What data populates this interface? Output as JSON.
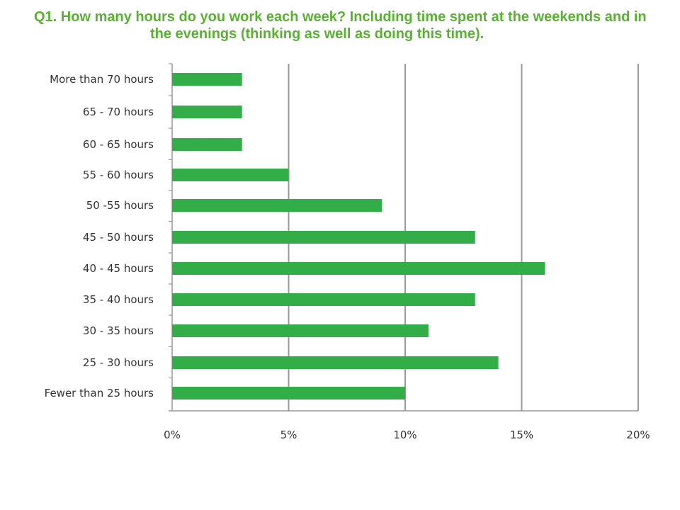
{
  "title": {
    "part1": "Q1.  How many hours do you work each week?  Including time spent at the weekends and in",
    "part2": "the evenings (thinking as well as doing this time)."
  },
  "colors": {
    "bar": "#33ad47",
    "grid": "#999999",
    "text": "#333333",
    "title": "#5ab033"
  },
  "chart_data": {
    "type": "bar",
    "orientation": "horizontal",
    "categories": [
      "More than 70 hours",
      "65 - 70 hours",
      "60 - 65 hours",
      "55 - 60 hours",
      "50 -55 hours",
      "45 - 50 hours",
      "40 - 45 hours",
      "35 - 40 hours",
      "30 - 35 hours",
      "25 - 30 hours",
      "Fewer than 25 hours"
    ],
    "values": [
      3,
      3,
      3,
      5,
      9,
      13,
      16,
      13,
      11,
      14,
      10
    ],
    "xlim": [
      0,
      20
    ],
    "xticks": [
      0,
      5,
      10,
      15,
      20
    ],
    "xtick_labels": [
      "0%",
      "5%",
      "10%",
      "15%",
      "20%"
    ],
    "grid": "vertical"
  }
}
